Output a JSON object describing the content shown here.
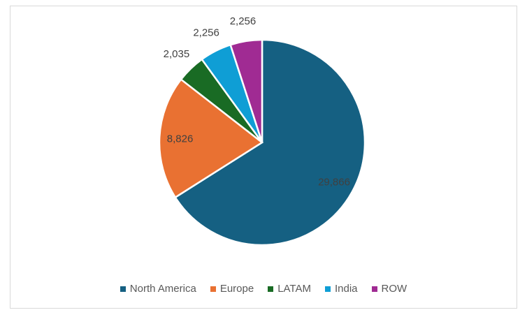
{
  "chart_data": {
    "type": "pie",
    "title": "",
    "categories": [
      "North America",
      "Europe",
      "LATAM",
      "India",
      "ROW"
    ],
    "values": [
      29866,
      8826,
      2035,
      2256,
      2256
    ],
    "labels": [
      "29,866",
      "8,826",
      "2,035",
      "2,256",
      "2,256"
    ],
    "colors": [
      "#156082",
      "#E97132",
      "#196B24",
      "#0F9ED5",
      "#A02B93"
    ],
    "start_angle_deg": 0,
    "direction": "clockwise",
    "legend_position": "bottom"
  }
}
